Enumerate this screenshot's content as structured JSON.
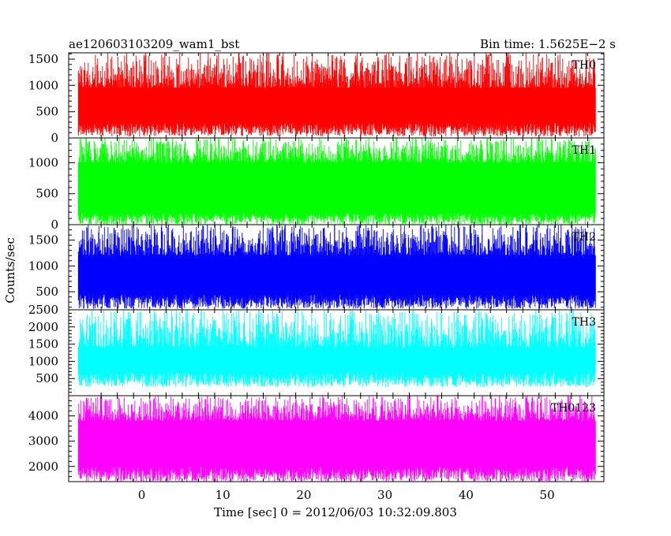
{
  "chart_data": {
    "type": "line",
    "title_left": "ae120603103209_wam1_bst",
    "title_right": "Bin time: 1.5625E−2 s",
    "xlabel": "Time [sec] 0 = 2012/06/03 10:32:09.803",
    "ylabel": "Counts/sec",
    "xlim": [
      -9,
      57
    ],
    "x_data_range": [
      -7.8,
      56
    ],
    "xticks": [
      0,
      10,
      20,
      30,
      40,
      50
    ],
    "xtick_labels": [
      "0",
      "10",
      "20",
      "30",
      "40",
      "50"
    ],
    "grid": false,
    "panels": [
      {
        "name": "TH0",
        "color": "#ff0000",
        "ylim": [
          0,
          1620
        ],
        "yticks": [
          0,
          500,
          1000,
          1500
        ],
        "ytick_labels": [
          "0",
          "500",
          "1000",
          "1500"
        ],
        "low_envelope": [
          30,
          290
        ],
        "high_envelope": [
          950,
          1620
        ]
      },
      {
        "name": "TH1",
        "color": "#00ff00",
        "ylim": [
          0,
          1400
        ],
        "yticks": [
          0,
          500,
          1000
        ],
        "ytick_labels": [
          "0",
          "500",
          "1000"
        ],
        "low_envelope": [
          0,
          200
        ],
        "high_envelope": [
          1000,
          1400
        ]
      },
      {
        "name": "TH2",
        "color": "#0000ff",
        "ylim": [
          150,
          1800
        ],
        "yticks": [
          500,
          1000,
          1500
        ],
        "ytick_labels": [
          "500",
          "1000",
          "1500"
        ],
        "low_envelope": [
          170,
          450
        ],
        "high_envelope": [
          1200,
          1800
        ]
      },
      {
        "name": "TH3",
        "color": "#00ffff",
        "ylim": [
          0,
          2500
        ],
        "yticks": [
          500,
          1000,
          1500,
          2000,
          2500
        ],
        "ytick_labels": [
          "500",
          "1000",
          "1500",
          "2000",
          "2500"
        ],
        "low_envelope": [
          250,
          700
        ],
        "high_envelope": [
          1400,
          2500
        ]
      },
      {
        "name": "TH0123",
        "color": "#ff00ff",
        "ylim": [
          1400,
          4800
        ],
        "yticks": [
          2000,
          3000,
          4000
        ],
        "ytick_labels": [
          "2000",
          "3000",
          "4000"
        ],
        "low_envelope": [
          1400,
          2000
        ],
        "high_envelope": [
          3800,
          4800
        ]
      }
    ]
  }
}
